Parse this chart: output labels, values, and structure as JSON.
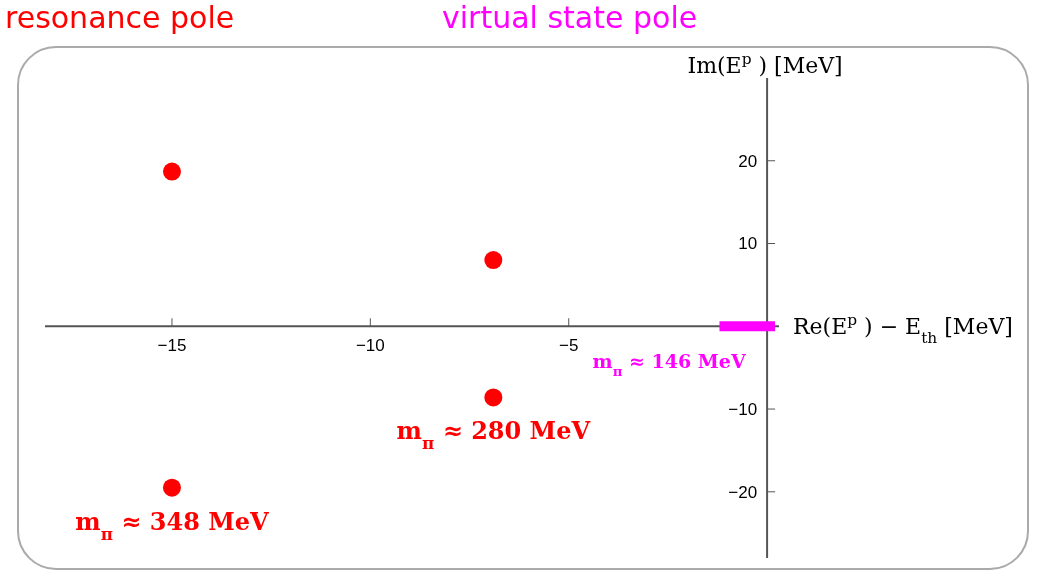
{
  "chart_data": {
    "type": "scatter",
    "xlabel": "Re(E$^{p}$) − E$_{th}$ [MeV]",
    "ylabel": "Im(E$^{p}$) [MeV]",
    "xlim": [
      -18.2,
      0.3
    ],
    "ylim": [
      -28,
      30
    ],
    "xticks": [
      -15,
      -10,
      -5
    ],
    "yticks": [
      -20,
      -10,
      10,
      20
    ],
    "series": [
      {
        "name": "resonance pole",
        "color": "#ff0000",
        "x": [
          -15,
          -15,
          -6.9,
          -6.9
        ],
        "values": [
          18.7,
          -19.5,
          8,
          -8.6
        ],
        "marker": "circle"
      },
      {
        "name": "virtual state pole",
        "color": "#ff00ff",
        "type": "line",
        "x": [
          -1.2,
          0.2
        ],
        "values": [
          0,
          0
        ],
        "marker": "none"
      }
    ],
    "annotations": [
      {
        "text": "m$_{π}$ ≈ 348 MeV",
        "x": -15,
        "y": -19.5
      },
      {
        "text": "m$_{π}$ ≈ 280 MeV",
        "x": -6.9,
        "y": -8.6
      },
      {
        "text": "m$_{π}$ ≈ 146 MeV",
        "x": -1.2,
        "y": 0
      }
    ],
    "grid": false,
    "legend": "top"
  }
}
